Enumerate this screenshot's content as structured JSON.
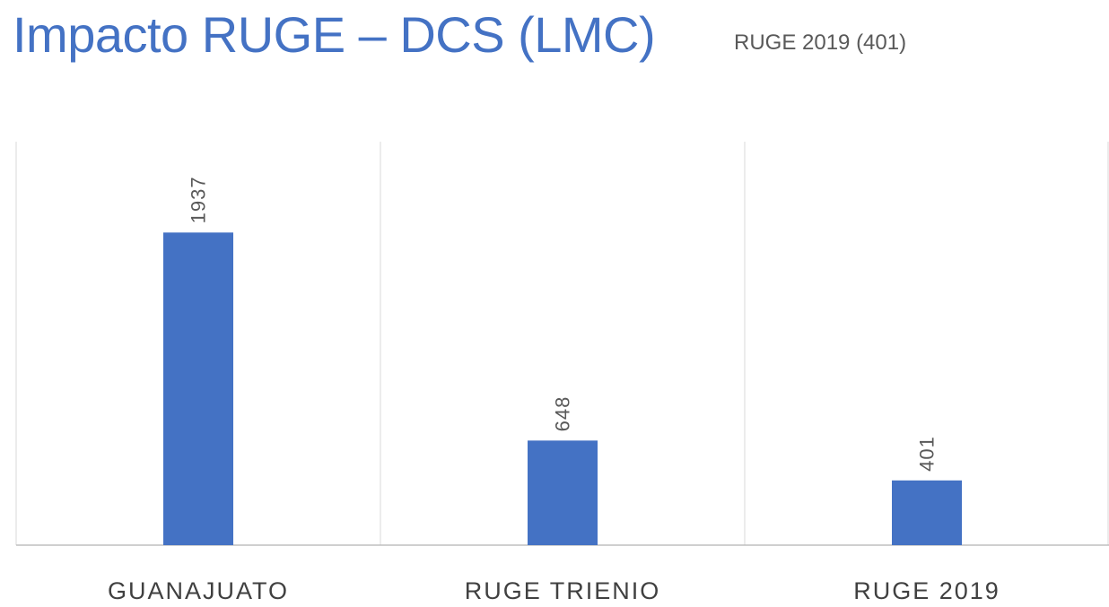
{
  "slide": {
    "title": "Impacto RUGE – DCS (LMC)",
    "subtitle": "RUGE 2019 (401)"
  },
  "colors": {
    "title": "#4472c4",
    "bar": "#4472c4",
    "gridline": "#d9d9d9",
    "axis": "#bfbfbf"
  },
  "chart_data": {
    "type": "bar",
    "categories": [
      "GUANAJUATO",
      "RUGE TRIENIO",
      "RUGE 2019"
    ],
    "values": [
      1937,
      648,
      401
    ],
    "data_labels": [
      "1937",
      "648",
      "401"
    ],
    "ylim": [
      0,
      2500
    ],
    "grid": "vertical category separators",
    "legend": "none",
    "data_label_orientation": "vertical"
  }
}
